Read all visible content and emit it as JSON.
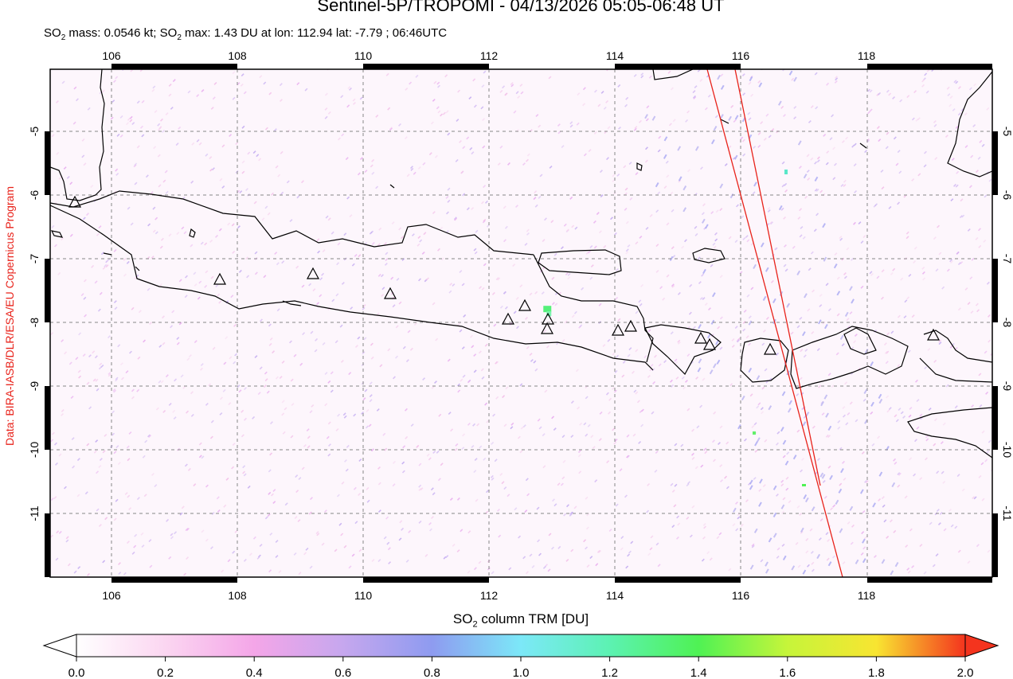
{
  "title": "Sentinel-5P/TROPOMI - 04/13/2026 05:05-06:48 UT",
  "subtitle": {
    "part1": "SO",
    "sub1": "2",
    "part2": " mass: 0.0546 kt; SO",
    "sub2": "2",
    "part3": " max: 1.43 DU at lon: 112.94 lat: -7.79 ; 06:46UTC"
  },
  "credit": "Data: BIRA-IASB/DLR/ESA/EU Copernicus Program",
  "colorbar": {
    "label_main": "SO",
    "label_sub": "2",
    "label_rest": " column TRM [DU]",
    "ticks": [
      "0.0",
      "0.2",
      "0.4",
      "0.6",
      "0.8",
      "1.0",
      "1.2",
      "1.4",
      "1.6",
      "1.8",
      "2.0"
    ],
    "colors": [
      "#ffffff",
      "#fbd6f1",
      "#f4a6e8",
      "#c6a7ee",
      "#8e9bf0",
      "#7ce8f8",
      "#5cf2b2",
      "#4ff254",
      "#c6f53a",
      "#f8e531",
      "#f4341e"
    ]
  },
  "map": {
    "lon_labels": [
      "106",
      "108",
      "110",
      "112",
      "114",
      "116",
      "118"
    ],
    "lat_labels": [
      "-5",
      "-6",
      "-7",
      "-8",
      "-9",
      "-10",
      "-11"
    ],
    "volcano_count": 14,
    "max_point": {
      "lon": 112.94,
      "lat": -7.79,
      "value_du": 1.43
    }
  }
}
